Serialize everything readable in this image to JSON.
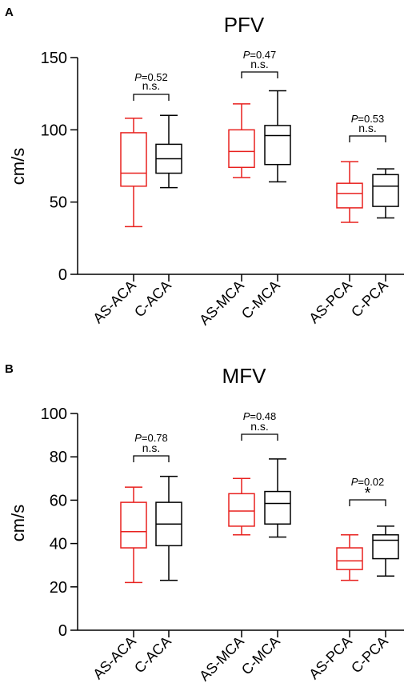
{
  "chart_data": [
    {
      "type": "box",
      "panel": "A",
      "title": "PFV",
      "ylabel": "cm/s",
      "ylim": [
        0,
        150
      ],
      "yticks": [
        0,
        50,
        100,
        150
      ],
      "colors": {
        "AS": "#e8201e",
        "C": "#000000"
      },
      "boxes": [
        {
          "label": "AS-ACA",
          "group": "AS",
          "min": 33,
          "q1": 61,
          "median": 70,
          "q3": 98,
          "max": 108
        },
        {
          "label": "C-ACA",
          "group": "C",
          "min": 60,
          "q1": 70,
          "median": 80,
          "q3": 90,
          "max": 110
        },
        {
          "label": "AS-MCA",
          "group": "AS",
          "min": 67,
          "q1": 74,
          "median": 85,
          "q3": 100,
          "max": 118
        },
        {
          "label": "C-MCA",
          "group": "C",
          "min": 64,
          "q1": 76,
          "median": 96,
          "q3": 103,
          "max": 127
        },
        {
          "label": "AS-PCA",
          "group": "AS",
          "min": 36,
          "q1": 46,
          "median": 56,
          "q3": 63,
          "max": 78
        },
        {
          "label": "C-PCA",
          "group": "C",
          "min": 39,
          "q1": 47,
          "median": 61,
          "q3": 69,
          "max": 73
        }
      ],
      "comparisons": [
        {
          "p_symbol": "P",
          "p_value": "=0.52",
          "sig": "n.s."
        },
        {
          "p_symbol": "P",
          "p_value": "=0.47",
          "sig": "n.s."
        },
        {
          "p_symbol": "P",
          "p_value": "=0.53",
          "sig": "n.s."
        }
      ]
    },
    {
      "type": "box",
      "panel": "B",
      "title": "MFV",
      "ylabel": "cm/s",
      "ylim": [
        0,
        100
      ],
      "yticks": [
        0,
        20,
        40,
        60,
        80,
        100
      ],
      "colors": {
        "AS": "#e8201e",
        "C": "#000000"
      },
      "boxes": [
        {
          "label": "AS-ACA",
          "group": "AS",
          "min": 22,
          "q1": 38,
          "median": 45.5,
          "q3": 59,
          "max": 66
        },
        {
          "label": "C-ACA",
          "group": "C",
          "min": 23,
          "q1": 39,
          "median": 49,
          "q3": 59,
          "max": 71
        },
        {
          "label": "AS-MCA",
          "group": "AS",
          "min": 44,
          "q1": 48,
          "median": 55,
          "q3": 63,
          "max": 70
        },
        {
          "label": "C-MCA",
          "group": "C",
          "min": 43,
          "q1": 49,
          "median": 58.5,
          "q3": 64,
          "max": 79
        },
        {
          "label": "AS-PCA",
          "group": "AS",
          "min": 23,
          "q1": 28,
          "median": 32,
          "q3": 38,
          "max": 44
        },
        {
          "label": "C-PCA",
          "group": "C",
          "min": 25,
          "q1": 33,
          "median": 41.5,
          "q3": 44,
          "max": 48
        }
      ],
      "comparisons": [
        {
          "p_symbol": "P",
          "p_value": "=0.78",
          "sig": "n.s."
        },
        {
          "p_symbol": "P",
          "p_value": "=0.48",
          "sig": "n.s."
        },
        {
          "p_symbol": "P",
          "p_value": "=0.02",
          "sig": "*"
        }
      ]
    }
  ]
}
